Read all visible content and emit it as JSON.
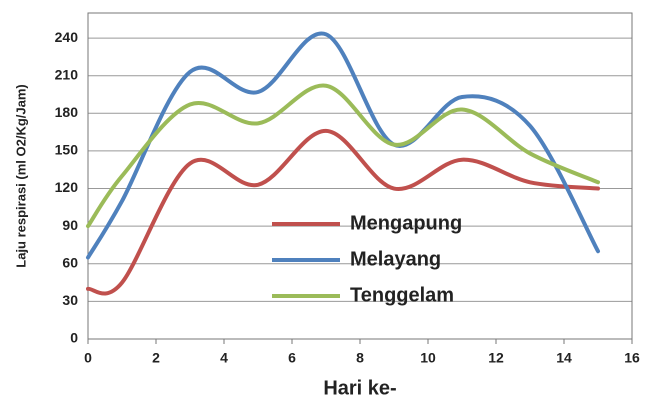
{
  "chart_data": {
    "type": "line",
    "x": [
      0,
      1,
      3,
      5,
      7,
      9,
      11,
      13,
      15
    ],
    "series": [
      {
        "name": "Mengapung",
        "color": "#c0504d",
        "values": [
          40,
          45,
          140,
          123,
          166,
          120,
          143,
          125,
          120
        ]
      },
      {
        "name": "Melayang",
        "color": "#4f81bd",
        "values": [
          65,
          110,
          213,
          197,
          243,
          155,
          193,
          170,
          70
        ]
      },
      {
        "name": "Tenggelam",
        "color": "#9bbb59",
        "values": [
          90,
          130,
          187,
          172,
          202,
          155,
          183,
          148,
          125
        ]
      }
    ],
    "xlabel": "Hari ke-",
    "ylabel": "Laju respirasi (ml O2/Kg/Jam)",
    "xlim": [
      0,
      16
    ],
    "xticks": [
      0,
      2,
      4,
      6,
      8,
      10,
      12,
      14,
      16
    ],
    "ylim": [
      0,
      260
    ],
    "yticks": [
      0,
      30,
      60,
      90,
      120,
      150,
      180,
      210,
      240
    ],
    "grid": true,
    "smooth": true
  }
}
